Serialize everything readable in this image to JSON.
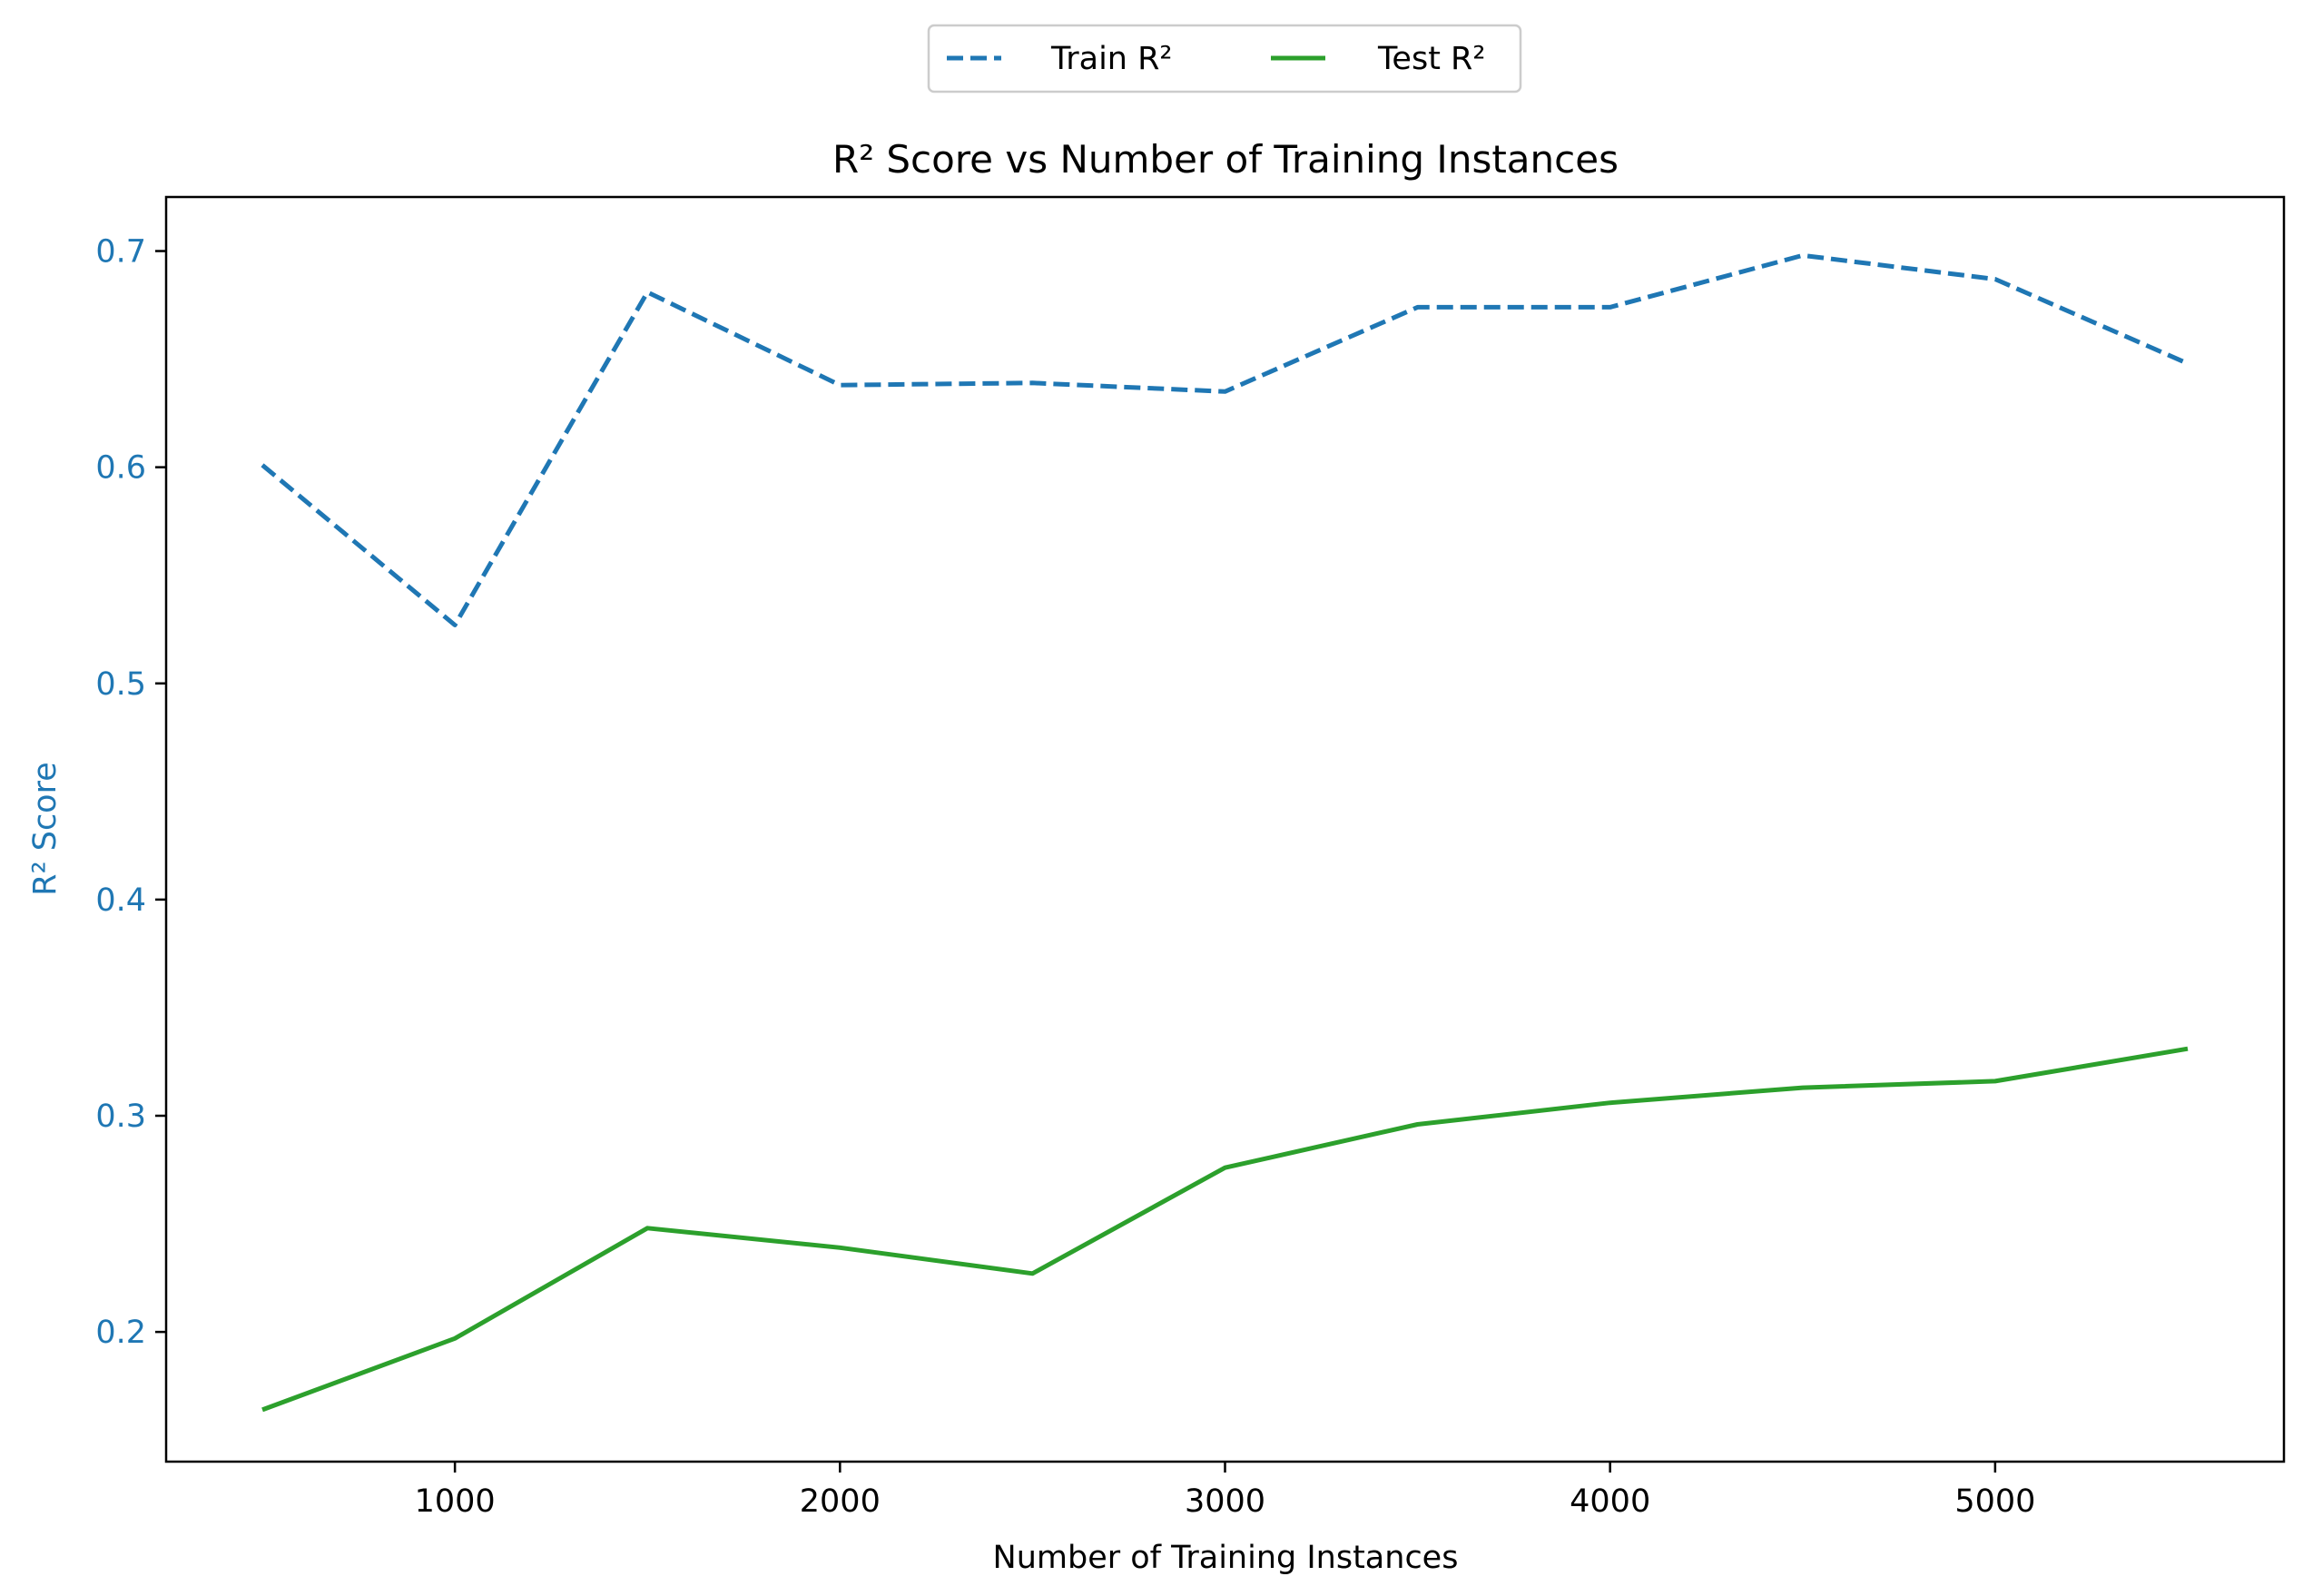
{
  "chart_data": {
    "type": "line",
    "title": "R² Score vs Number of Training Instances",
    "xlabel": "Number of Training Instances",
    "ylabel": "R² Score",
    "xlim": [
      250,
      5750
    ],
    "ylim": [
      0.14,
      0.725
    ],
    "xticks": [
      1000,
      2000,
      3000,
      4000,
      5000
    ],
    "yticks": [
      0.2,
      0.3,
      0.4,
      0.5,
      0.6,
      0.7
    ],
    "ylabel_color": "#1f77b4",
    "ytick_color": "#1f77b4",
    "grid": false,
    "legend_placement": "top-center",
    "x": [
      500,
      1000,
      1500,
      2000,
      2500,
      3000,
      3500,
      4000,
      4500,
      5000,
      5500
    ],
    "series": [
      {
        "name": "Train R²",
        "color": "#1f77b4",
        "dash": true,
        "values": [
          0.601,
          0.527,
          0.681,
          0.638,
          0.639,
          0.635,
          0.674,
          0.674,
          0.698,
          0.687,
          0.648
        ]
      },
      {
        "name": "Test R²",
        "color": "#2ca02c",
        "dash": false,
        "values": [
          0.164,
          0.197,
          0.248,
          0.239,
          0.227,
          0.276,
          0.296,
          0.306,
          0.313,
          0.316,
          0.331
        ]
      }
    ]
  }
}
